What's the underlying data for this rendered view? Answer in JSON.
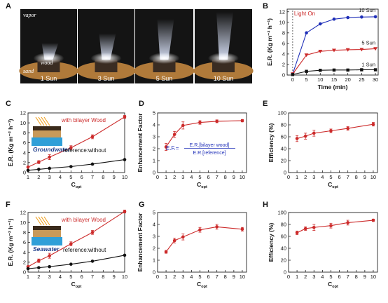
{
  "panels": {
    "A": {
      "letter": "A",
      "photos": [
        {
          "caption": "1 Sun",
          "plume": 0.35
        },
        {
          "caption": "3 Sun",
          "plume": 0.55
        },
        {
          "caption": "5 Sun",
          "plume": 0.85
        },
        {
          "caption": "10 Sun",
          "plume": 1.0
        }
      ],
      "labels": {
        "vapor": "vapor",
        "wood": "wood",
        "sand": "sand"
      },
      "colors": {
        "sand": "#b07a3a",
        "wood": "#3a2c22",
        "background": "#141414",
        "plume": "#dfe8ff"
      }
    },
    "B": {
      "letter": "B"
    },
    "C": {
      "letter": "C",
      "inset_label": "Groundwater",
      "inset_water_color": "#2f9fd8"
    },
    "D": {
      "letter": "D",
      "formula_lhs": "E.F.=",
      "formula_num": "E.R.[bilayer wood]",
      "formula_den": "E.R.[reference]"
    },
    "E": {
      "letter": "E"
    },
    "F": {
      "letter": "F",
      "inset_label": "Seawater",
      "inset_water_color": "#2f9fd8"
    },
    "G": {
      "letter": "G"
    },
    "H": {
      "letter": "H"
    }
  },
  "colors": {
    "red": "#cc2a2a",
    "blue": "#1f2fb8",
    "black": "#111111",
    "axis": "#222222"
  },
  "chart_data": [
    {
      "id": "B",
      "type": "line",
      "xlabel": "Time (min)",
      "ylabel": "E.R. (Kg m⁻² h⁻¹)",
      "xlim": [
        -2,
        31
      ],
      "ylim": [
        0,
        12.5
      ],
      "xticks": [
        0,
        5,
        10,
        15,
        20,
        25,
        30
      ],
      "yticks": [
        0,
        2,
        4,
        6,
        8,
        10,
        12
      ],
      "annotation": "Light On",
      "annotation_x": 0,
      "series": [
        {
          "name": "10 Sun",
          "color": "#1f2fb8",
          "marker": "circle",
          "x": [
            0,
            5,
            10,
            15,
            20,
            25,
            30
          ],
          "y": [
            0.2,
            8.0,
            9.7,
            10.6,
            10.9,
            11.0,
            11.05
          ]
        },
        {
          "name": "5 Sun",
          "color": "#cc2a2a",
          "marker": "triangle-down",
          "x": [
            0,
            5,
            10,
            15,
            20,
            25,
            30
          ],
          "y": [
            0.2,
            3.8,
            4.5,
            4.7,
            4.8,
            4.85,
            5.0
          ]
        },
        {
          "name": "1 Sun",
          "color": "#111111",
          "marker": "square",
          "x": [
            0,
            5,
            10,
            15,
            20,
            25,
            30
          ],
          "y": [
            0.1,
            0.7,
            0.9,
            0.95,
            0.95,
            1.0,
            1.0
          ]
        }
      ]
    },
    {
      "id": "C",
      "type": "line",
      "xlabel": "C",
      "xlabel_sub": "opt",
      "ylabel": "E.R. (Kg m⁻² h⁻¹)",
      "xlim": [
        1,
        10
      ],
      "ylim": [
        0,
        12
      ],
      "xticks": [
        1,
        2,
        3,
        4,
        5,
        6,
        7,
        8,
        9,
        10
      ],
      "yticks": [
        0,
        2,
        4,
        6,
        8,
        10,
        12
      ],
      "series": [
        {
          "name": "with bilayer Wood",
          "color": "#cc2a2a",
          "marker": "circle",
          "x": [
            1,
            2,
            3,
            5,
            7,
            10
          ],
          "y": [
            1.1,
            2.1,
            3.1,
            5.0,
            7.2,
            11.2
          ],
          "err": [
            0.15,
            0.3,
            0.5,
            0.4,
            0.4,
            0.3
          ]
        },
        {
          "name": "reference:without",
          "color": "#111111",
          "marker": "circle",
          "x": [
            1,
            2,
            3,
            5,
            7,
            10
          ],
          "y": [
            0.45,
            0.65,
            0.85,
            1.2,
            1.7,
            2.6
          ],
          "err": [
            0,
            0,
            0,
            0,
            0,
            0
          ]
        }
      ]
    },
    {
      "id": "D",
      "type": "line",
      "xlabel": "C",
      "xlabel_sub": "opt",
      "ylabel": "Enhancement Factor",
      "xlim": [
        0,
        10.5
      ],
      "ylim": [
        0,
        5
      ],
      "xticks": [
        0,
        1,
        2,
        3,
        4,
        5,
        6,
        7,
        8,
        9,
        10
      ],
      "yticks": [
        0,
        1,
        2,
        3,
        4,
        5
      ],
      "series": [
        {
          "name": "",
          "color": "#cc2a2a",
          "marker": "circle",
          "x": [
            1,
            2,
            3,
            5,
            7,
            10
          ],
          "y": [
            2.15,
            3.2,
            3.95,
            4.2,
            4.3,
            4.35
          ],
          "err": [
            0.3,
            0.25,
            0.3,
            0.15,
            0.12,
            0.1
          ]
        }
      ]
    },
    {
      "id": "E",
      "type": "line",
      "xlabel": "C",
      "xlabel_sub": "opt",
      "ylabel": "Efficiency (%)",
      "xlim": [
        0,
        10.5
      ],
      "ylim": [
        0,
        100
      ],
      "xticks": [
        0,
        1,
        2,
        3,
        4,
        5,
        6,
        7,
        8,
        9,
        10
      ],
      "yticks": [
        0,
        20,
        40,
        60,
        80,
        100
      ],
      "series": [
        {
          "name": "",
          "color": "#cc2a2a",
          "marker": "circle",
          "x": [
            1,
            2,
            3,
            5,
            7,
            10
          ],
          "y": [
            57,
            61,
            66,
            70,
            74,
            81
          ],
          "err": [
            5,
            5,
            5,
            3,
            3,
            3
          ]
        }
      ]
    },
    {
      "id": "F",
      "type": "line",
      "xlabel": "C",
      "xlabel_sub": "opt",
      "ylabel": "E.R. (Kg m⁻² h⁻¹)",
      "xlim": [
        1,
        10
      ],
      "ylim": [
        0,
        12
      ],
      "xticks": [
        1,
        2,
        3,
        4,
        5,
        6,
        7,
        8,
        9,
        10
      ],
      "yticks": [
        0,
        2,
        4,
        6,
        8,
        10,
        12
      ],
      "series": [
        {
          "name": "with bilayer Wood",
          "color": "#cc2a2a",
          "marker": "circle",
          "x": [
            1,
            2,
            3,
            5,
            7,
            10
          ],
          "y": [
            1.1,
            2.3,
            3.3,
            5.7,
            8.0,
            12.2
          ],
          "err": [
            0.15,
            0.35,
            0.5,
            0.4,
            0.4,
            0.3
          ]
        },
        {
          "name": "reference:without",
          "color": "#111111",
          "marker": "circle",
          "x": [
            1,
            2,
            3,
            5,
            7,
            10
          ],
          "y": [
            0.7,
            0.9,
            1.1,
            1.6,
            2.2,
            3.4
          ],
          "err": [
            0,
            0,
            0,
            0,
            0,
            0
          ]
        }
      ]
    },
    {
      "id": "G",
      "type": "line",
      "xlabel": "C",
      "xlabel_sub": "opt",
      "ylabel": "Enhancement Factor",
      "xlim": [
        0,
        10.5
      ],
      "ylim": [
        0,
        5
      ],
      "xticks": [
        0,
        1,
        2,
        3,
        4,
        5,
        6,
        7,
        8,
        9,
        10
      ],
      "yticks": [
        0,
        1,
        2,
        3,
        4,
        5
      ],
      "series": [
        {
          "name": "",
          "color": "#cc2a2a",
          "marker": "circle",
          "x": [
            1,
            2,
            3,
            5,
            7,
            10
          ],
          "y": [
            1.7,
            2.65,
            2.95,
            3.55,
            3.8,
            3.6
          ],
          "err": [
            0.12,
            0.2,
            0.25,
            0.2,
            0.2,
            0.15
          ]
        }
      ]
    },
    {
      "id": "H",
      "type": "line",
      "xlabel": "C",
      "xlabel_sub": "opt",
      "ylabel": "Efficiency (%)",
      "xlim": [
        0,
        10.5
      ],
      "ylim": [
        0,
        100
      ],
      "xticks": [
        0,
        1,
        2,
        3,
        4,
        5,
        6,
        7,
        8,
        9,
        10
      ],
      "yticks": [
        0,
        20,
        40,
        60,
        80,
        100
      ],
      "series": [
        {
          "name": "",
          "color": "#cc2a2a",
          "marker": "circle",
          "x": [
            1,
            2,
            3,
            5,
            7,
            10
          ],
          "y": [
            66,
            73,
            75,
            78,
            83,
            87
          ],
          "err": [
            3,
            3,
            5,
            4,
            4,
            2
          ]
        }
      ]
    }
  ]
}
